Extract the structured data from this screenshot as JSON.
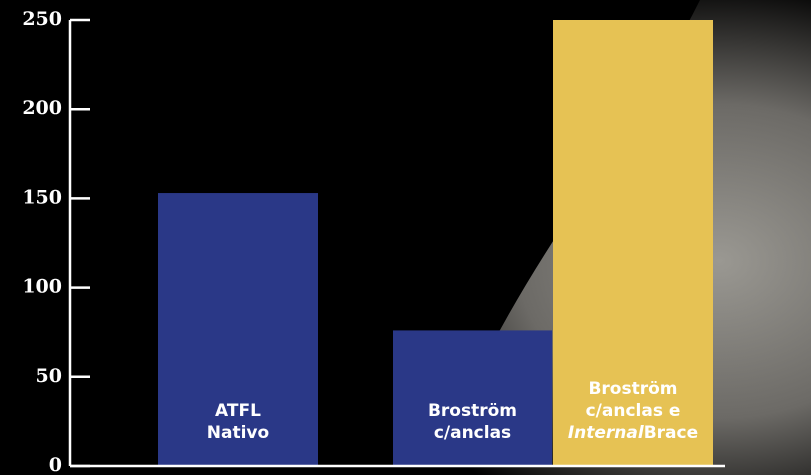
{
  "chart_data": {
    "type": "bar",
    "categories": [
      [
        "ATFL",
        "Nativo"
      ],
      [
        "Broström",
        "c/anclas"
      ],
      [
        "Broström",
        "c/anclas e",
        [
          "Internal",
          "Brace"
        ]
      ]
    ],
    "values": [
      153,
      76,
      250
    ],
    "colors": [
      "#2a3887",
      "#2a3887",
      "#e6c254"
    ],
    "ylim": [
      0,
      250
    ],
    "yticks": [
      0,
      50,
      100,
      150,
      200,
      250
    ]
  }
}
